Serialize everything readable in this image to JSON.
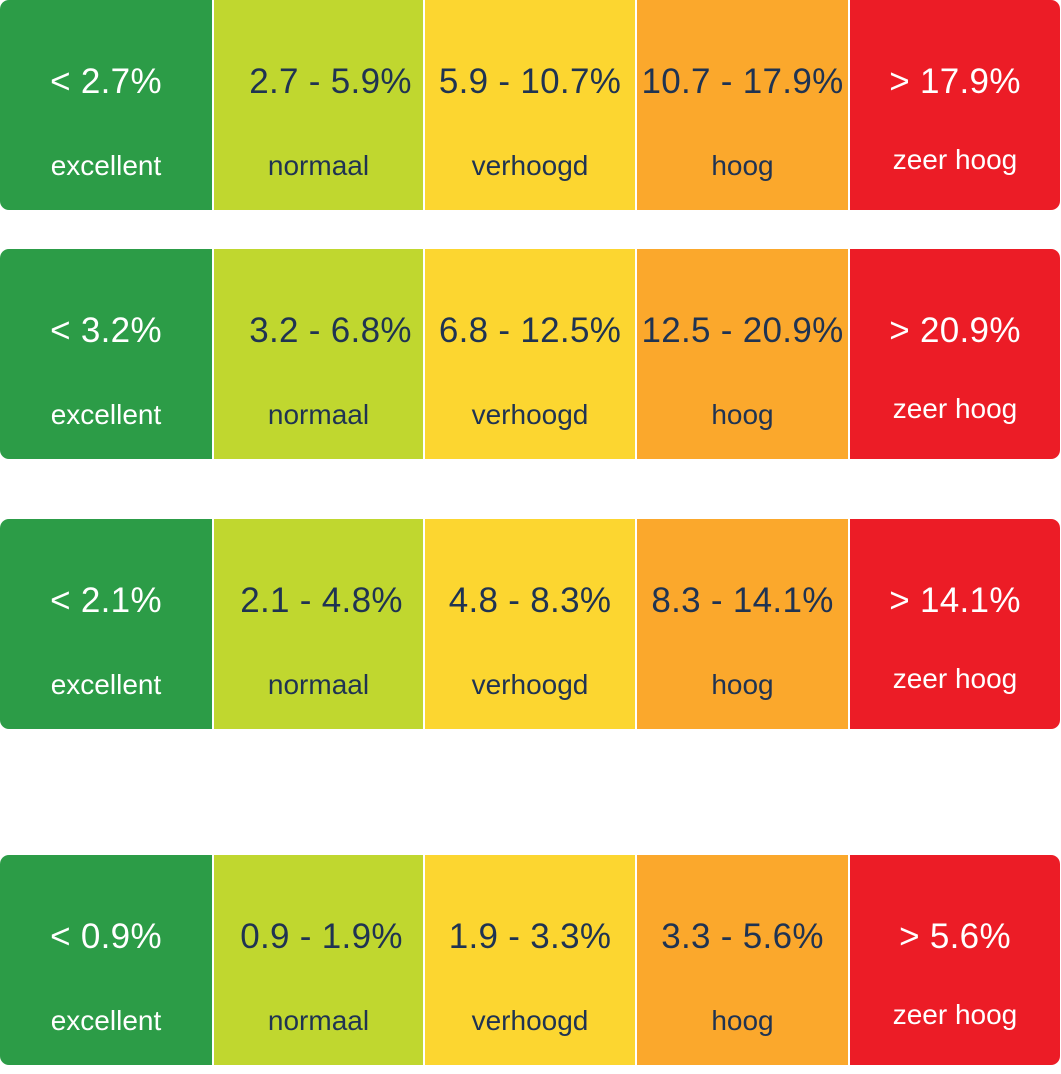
{
  "colors": {
    "excellent": "#2c9c47",
    "normaal": "#c0d72f",
    "verhoogd": "#fcd630",
    "hoog": "#fba82c",
    "zeer_hoog": "#ec1c26",
    "text_dark": "#1f3352",
    "text_light": "#ffffff"
  },
  "labels": [
    "excellent",
    "normaal",
    "verhoogd",
    "hoog",
    "zeer hoog"
  ],
  "scales": [
    {
      "ranges": [
        "< 2.7%",
        "2.7 - 5.9%",
        "5.9 - 10.7%",
        "10.7 - 17.9%",
        "> 17.9%"
      ]
    },
    {
      "ranges": [
        "< 3.2%",
        "3.2 - 6.8%",
        "6.8 - 12.5%",
        "12.5 - 20.9%",
        "> 20.9%"
      ]
    },
    {
      "ranges": [
        "< 2.1%",
        "2.1 - 4.8%",
        "4.8 - 8.3%",
        "8.3 - 14.1%",
        "> 14.1%"
      ]
    },
    {
      "ranges": [
        "< 0.9%",
        "0.9 - 1.9%",
        "1.9 - 3.3%",
        "3.3 - 5.6%",
        "> 5.6%"
      ]
    }
  ]
}
